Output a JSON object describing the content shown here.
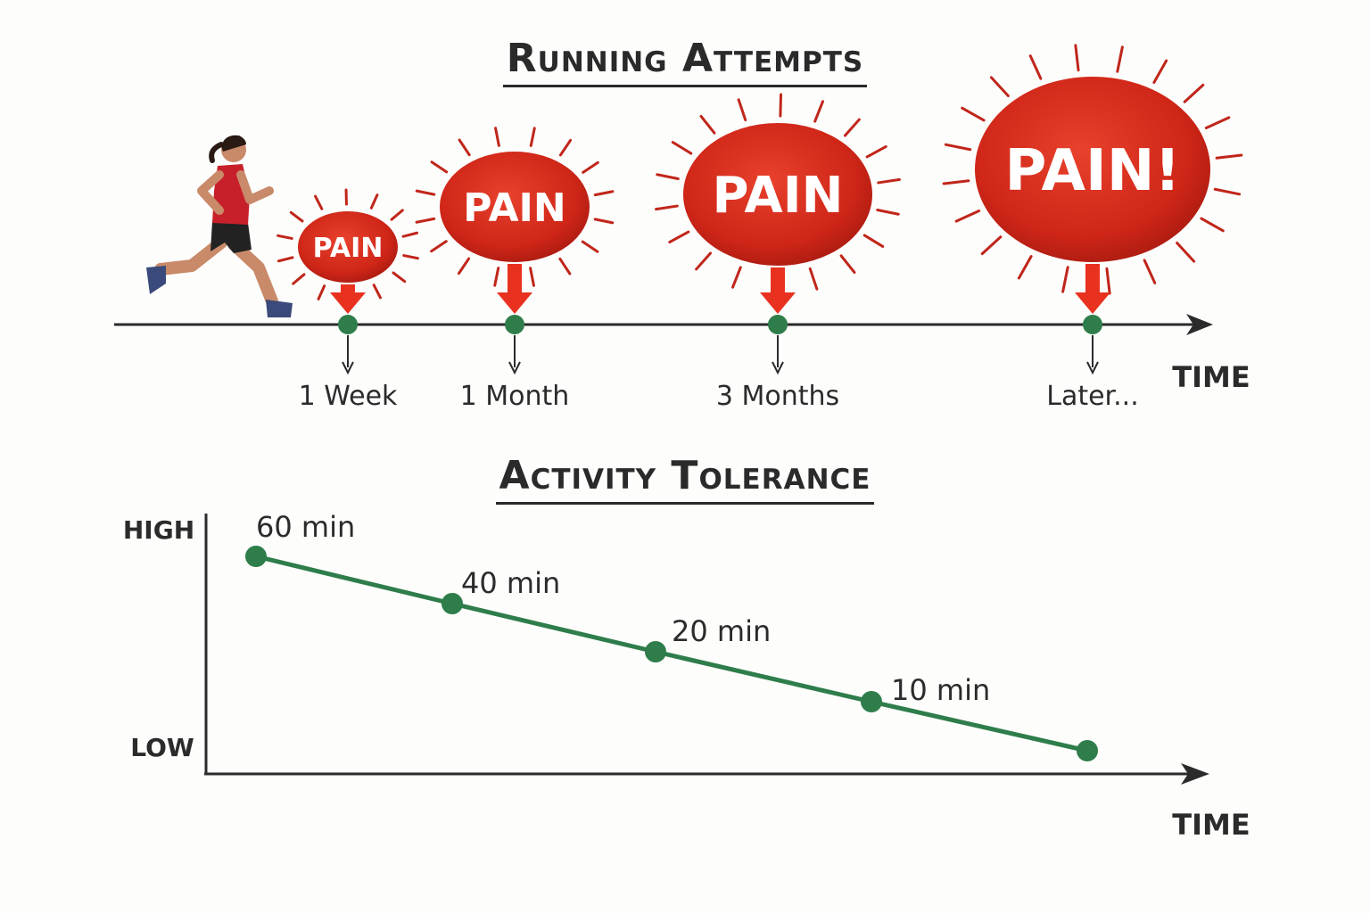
{
  "running": {
    "title": "Running Attempts",
    "axis_label": "TIME",
    "events": [
      {
        "label": "1 Week",
        "text": "PAIN"
      },
      {
        "label": "1 Month",
        "text": "PAIN"
      },
      {
        "label": "3 Months",
        "text": "PAIN"
      },
      {
        "label": "Later...",
        "text": "PAIN!"
      }
    ]
  },
  "activity": {
    "title": "Activity Tolerance",
    "y_high": "HIGH",
    "y_low": "LOW",
    "x_label": "TIME",
    "points": [
      {
        "label": "60 min",
        "minutes": 60
      },
      {
        "label": "40 min",
        "minutes": 40
      },
      {
        "label": "20 min",
        "minutes": 20
      },
      {
        "label": "10 min",
        "minutes": 10
      },
      {
        "label": "",
        "minutes": 0
      }
    ]
  },
  "colors": {
    "pain_red": "#d02a1c",
    "arrow_red": "#e8321f",
    "line_green": "#2e7d4a",
    "axis_dark": "#2b2b2b"
  }
}
